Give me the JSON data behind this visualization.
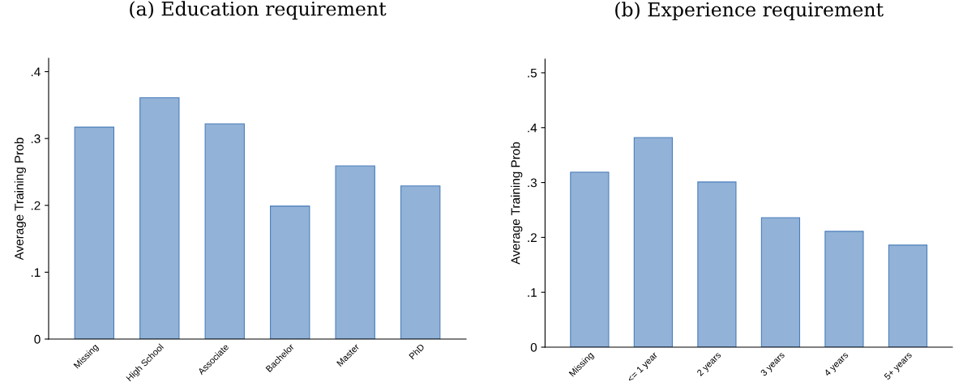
{
  "chart_data": [
    {
      "type": "bar",
      "title": "(a) Education requirement",
      "ylabel": "Average Training Prob",
      "categories": [
        "Missing",
        "High School",
        "Associate",
        "Bachelor",
        "Master",
        "PhD"
      ],
      "values": [
        0.317,
        0.361,
        0.322,
        0.199,
        0.259,
        0.229
      ],
      "color": "#92b2d7",
      "ylim": [
        0,
        0.42
      ],
      "yticks": [
        {
          "value": 0,
          "label": "0"
        },
        {
          "value": 0.1,
          "label": ".1"
        },
        {
          "value": 0.2,
          "label": ".2"
        },
        {
          "value": 0.3,
          "label": ".3"
        },
        {
          "value": 0.4,
          "label": ".4"
        }
      ],
      "grid": false,
      "legend": false
    },
    {
      "type": "bar",
      "title": "(b) Experience requirement",
      "ylabel": "Average Training Prob",
      "categories": [
        "Missing",
        "<= 1 year",
        "2 years",
        "3 years",
        "4 years",
        "5+ years"
      ],
      "values": [
        0.319,
        0.382,
        0.301,
        0.236,
        0.211,
        0.186
      ],
      "color": "#92b2d7",
      "ylim": [
        0,
        0.525
      ],
      "yticks": [
        {
          "value": 0,
          "label": "0"
        },
        {
          "value": 0.1,
          "label": ".1"
        },
        {
          "value": 0.2,
          "label": ".2"
        },
        {
          "value": 0.3,
          "label": ".3"
        },
        {
          "value": 0.4,
          "label": ".4"
        },
        {
          "value": 0.5,
          "label": ".5"
        }
      ],
      "grid": false,
      "legend": false
    }
  ]
}
